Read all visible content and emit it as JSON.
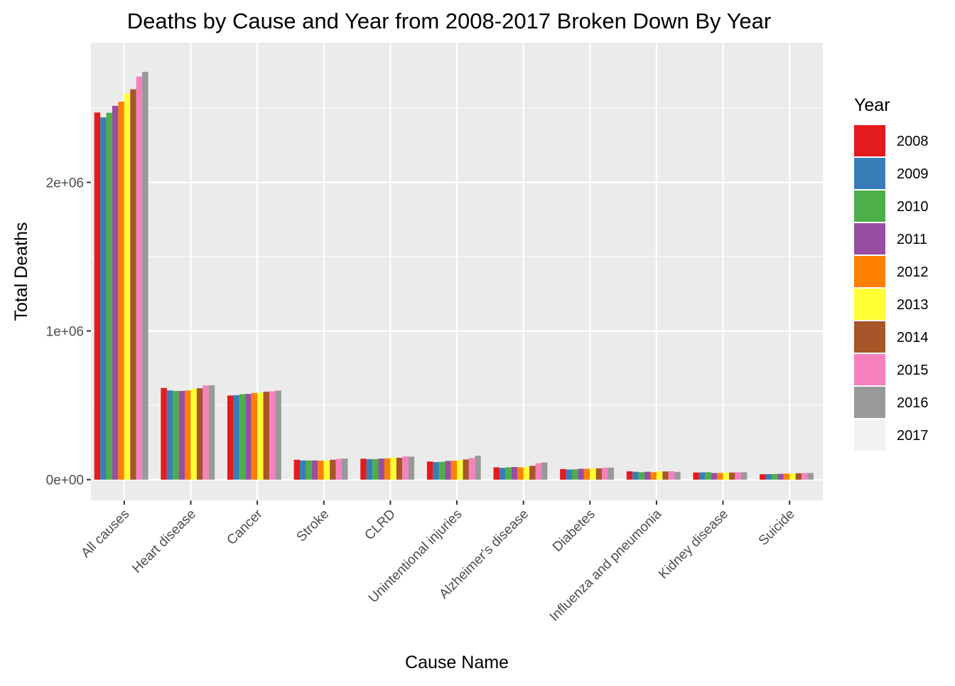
{
  "chart_data": {
    "type": "bar",
    "title": "Deaths by Cause and Year from 2008-2017 Broken Down By Year",
    "xlabel": "Cause Name",
    "ylabel": "Total Deaths",
    "categories": [
      "All causes",
      "Heart disease",
      "Cancer",
      "Stroke",
      "CLRD",
      "Unintentional injuries",
      "Alzheimer's disease",
      "Diabetes",
      "Influenza and pneumonia",
      "Kidney disease",
      "Suicide"
    ],
    "y_ticks": [
      {
        "value": 0,
        "label": "0e+00"
      },
      {
        "value": 1000000,
        "label": "1e+06"
      },
      {
        "value": 2000000,
        "label": "2e+06"
      }
    ],
    "ylim": [
      -140000,
      2940000
    ],
    "grid": true,
    "legend": {
      "title": "Year",
      "position": "right"
    },
    "series": [
      {
        "name": "2008",
        "color": "#E41A1C",
        "values": [
          2470000,
          617000,
          566000,
          134000,
          141000,
          122000,
          83000,
          71000,
          56000,
          48000,
          36000
        ]
      },
      {
        "name": "2009",
        "color": "#377EB8",
        "values": [
          2437000,
          600000,
          568000,
          129000,
          138000,
          118000,
          79000,
          68000,
          53000,
          49000,
          37000
        ]
      },
      {
        "name": "2010",
        "color": "#4DAF4A",
        "values": [
          2468000,
          597000,
          575000,
          129000,
          138000,
          120000,
          83000,
          69000,
          50000,
          50000,
          38000
        ]
      },
      {
        "name": "2011",
        "color": "#984EA3",
        "values": [
          2515000,
          597000,
          577000,
          129000,
          142000,
          126000,
          85000,
          73000,
          53000,
          45000,
          39000
        ]
      },
      {
        "name": "2012",
        "color": "#FF7F00",
        "values": [
          2543000,
          600000,
          583000,
          128000,
          143000,
          127000,
          83000,
          73000,
          50000,
          45000,
          40000
        ]
      },
      {
        "name": "2013",
        "color": "#FFFF33",
        "values": [
          2597000,
          611000,
          585000,
          128000,
          149000,
          131000,
          85000,
          76000,
          57000,
          47000,
          41000
        ]
      },
      {
        "name": "2014",
        "color": "#A65628",
        "values": [
          2626000,
          615000,
          592000,
          134000,
          147000,
          136000,
          93000,
          76000,
          55000,
          48000,
          43000
        ]
      },
      {
        "name": "2015",
        "color": "#F781BF",
        "values": [
          2712000,
          634000,
          595000,
          140000,
          156000,
          146000,
          111000,
          80000,
          57000,
          49000,
          44000
        ]
      },
      {
        "name": "2016",
        "color": "#999999",
        "values": [
          2744000,
          635000,
          599000,
          142000,
          155000,
          161000,
          116000,
          81000,
          52000,
          50000,
          45000
        ]
      },
      {
        "name": "2017",
        "color": "#F2F2F2",
        "values": [
          null,
          null,
          null,
          null,
          null,
          null,
          null,
          null,
          null,
          null,
          null
        ]
      }
    ]
  }
}
